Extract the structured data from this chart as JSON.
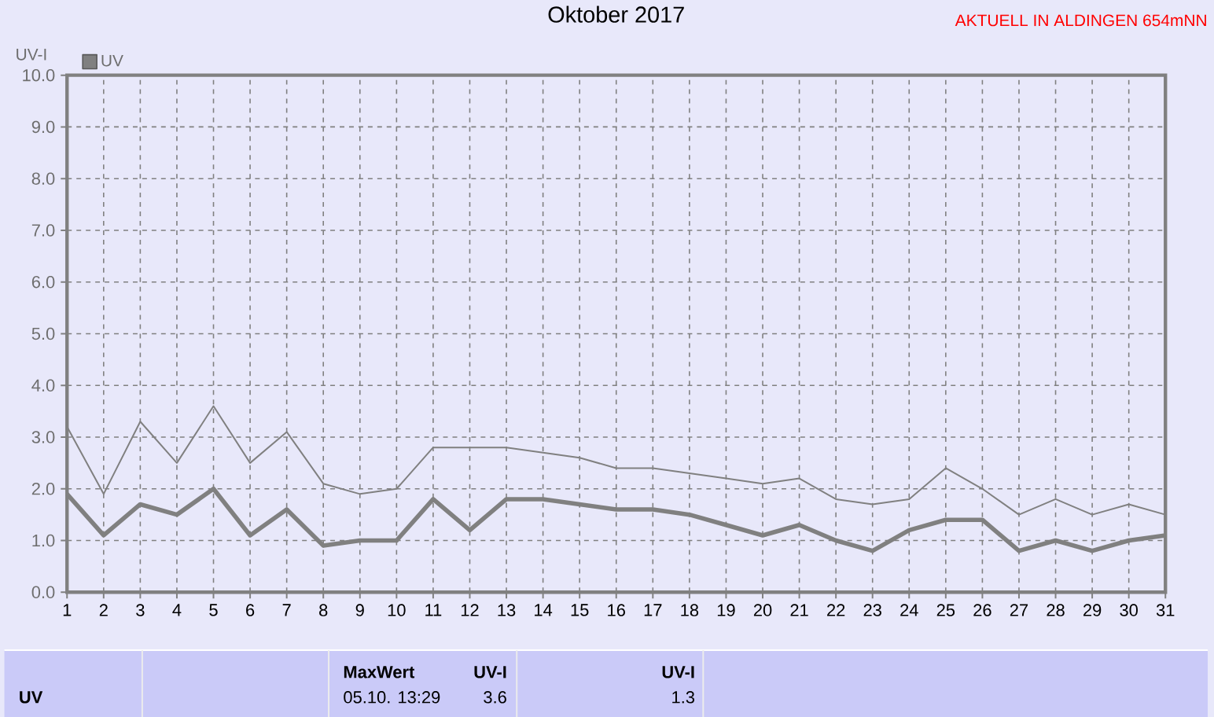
{
  "chart_data": {
    "type": "line",
    "title": "Oktober 2017",
    "ylabel": "UV-I",
    "annotations": [
      "AKTUELL IN ALDINGEN 654mNN",
      "UV",
      "MaxWert",
      "UV-I",
      "05.10. 13:29",
      "3.6",
      "UV-I",
      "1.3"
    ],
    "x": [
      1,
      2,
      3,
      4,
      5,
      6,
      7,
      8,
      9,
      10,
      11,
      12,
      13,
      14,
      15,
      16,
      17,
      18,
      19,
      20,
      21,
      22,
      23,
      24,
      25,
      26,
      27,
      28,
      29,
      30,
      31
    ],
    "series": [
      {
        "name": "UV",
        "color": "#808080",
        "values": [
          1.9,
          1.1,
          1.7,
          1.5,
          2.0,
          1.1,
          1.6,
          0.9,
          1.0,
          1.0,
          1.8,
          1.2,
          1.8,
          1.8,
          1.7,
          1.6,
          1.6,
          1.5,
          1.3,
          1.1,
          1.3,
          1.0,
          0.8,
          1.2,
          1.4,
          1.4,
          0.8,
          1.0,
          0.8,
          1.0,
          1.1
        ]
      },
      {
        "color": "#808080",
        "values": [
          3.2,
          1.9,
          3.3,
          2.5,
          3.6,
          2.5,
          3.1,
          2.1,
          1.9,
          2.0,
          2.8,
          2.8,
          2.8,
          2.7,
          2.6,
          2.4,
          2.4,
          2.3,
          2.2,
          2.1,
          2.2,
          1.8,
          1.7,
          1.8,
          2.4,
          2.0,
          1.5,
          1.8,
          1.5,
          1.7,
          1.5
        ]
      }
    ],
    "xlim": [
      1,
      31
    ],
    "xticks": [
      1,
      2,
      3,
      4,
      5,
      6,
      7,
      8,
      9,
      10,
      11,
      12,
      13,
      14,
      15,
      16,
      17,
      18,
      19,
      20,
      21,
      22,
      23,
      24,
      25,
      26,
      27,
      28,
      29,
      30,
      31
    ],
    "ylim": [
      0,
      10
    ],
    "yticks": [
      {
        "value": 0,
        "label": "0.0"
      },
      {
        "value": 1,
        "label": "1.0"
      },
      {
        "value": 2,
        "label": "2.0"
      },
      {
        "value": 3,
        "label": "3.0"
      },
      {
        "value": 4,
        "label": "4.0"
      },
      {
        "value": 5,
        "label": "5.0"
      },
      {
        "value": 6,
        "label": "6.0"
      },
      {
        "value": 7,
        "label": "7.0"
      },
      {
        "value": 8,
        "label": "8.0"
      },
      {
        "value": 9,
        "label": "9.0"
      },
      {
        "value": 10,
        "label": "10.0"
      }
    ],
    "grid": true,
    "legend": "top left"
  }
}
